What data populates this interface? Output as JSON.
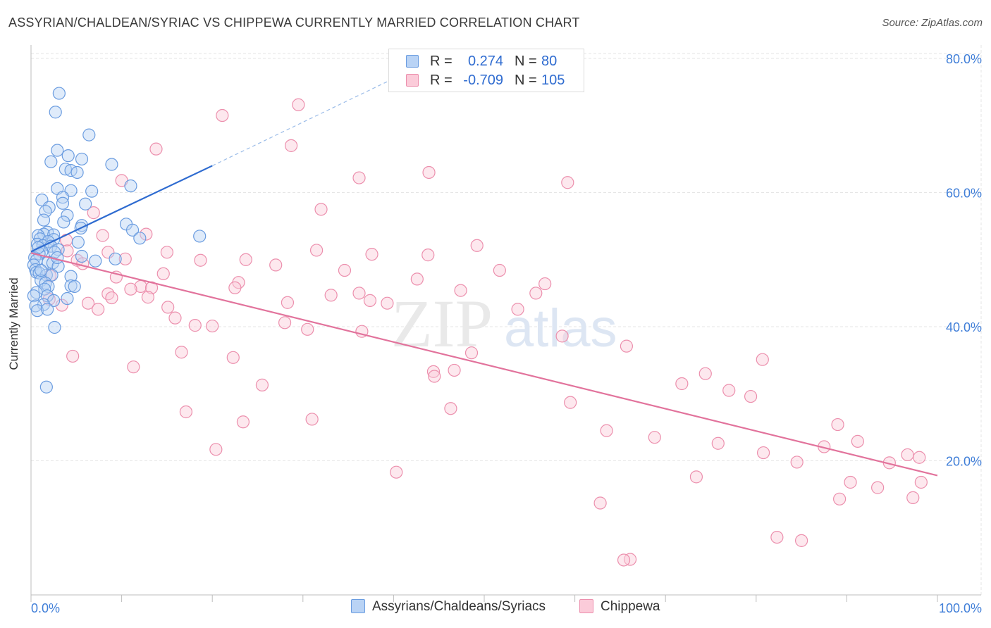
{
  "title": "ASSYRIAN/CHALDEAN/SYRIAC VS CHIPPEWA CURRENTLY MARRIED CORRELATION CHART",
  "source": "Source: ZipAtlas.com",
  "watermark": {
    "zip": "ZIP",
    "atlas": "atlas"
  },
  "legend": {
    "rows": [
      {
        "r_label": "R =",
        "r_value": "0.274",
        "n_label": "N =",
        "n_value": "80",
        "fill": "#b9d3f5",
        "stroke": "#6a9ce0"
      },
      {
        "r_label": "R =",
        "r_value": "-0.709",
        "n_label": "N =",
        "n_value": "105",
        "fill": "#fbcbd9",
        "stroke": "#ec8fad"
      }
    ]
  },
  "bottom_legend": [
    {
      "label": "Assyrians/Chaldeans/Syriacs",
      "fill": "#b9d3f5",
      "stroke": "#6a9ce0"
    },
    {
      "label": "Chippewa",
      "fill": "#fbcbd9",
      "stroke": "#ec8fad"
    }
  ],
  "chart_data": {
    "type": "scatter",
    "title": "ASSYRIAN/CHALDEAN/SYRIAC VS CHIPPEWA CURRENTLY MARRIED CORRELATION CHART",
    "xlabel": "",
    "ylabel": "Currently Married",
    "xlim": [
      0,
      100
    ],
    "ylim": [
      0,
      82
    ],
    "x_tick_labels": [
      {
        "value": 0,
        "label": "0.0%"
      },
      {
        "value": 100,
        "label": "100.0%"
      }
    ],
    "y_tick_labels": [
      {
        "value": 20,
        "label": "20.0%"
      },
      {
        "value": 40,
        "label": "40.0%"
      },
      {
        "value": 60,
        "label": "60.0%"
      },
      {
        "value": 80,
        "label": "80.0%"
      }
    ],
    "grid": true,
    "colors": {
      "blue_fill": "#b9d3f5",
      "blue_stroke": "#6a9ce0",
      "blue_line": "#2e6bd0",
      "pink_fill": "#fbcbd9",
      "pink_stroke": "#ec8fad",
      "pink_line": "#e2739c",
      "tick_label": "#3f7ed8"
    },
    "series": [
      {
        "name": "Assyrians/Chaldeans/Syriacs",
        "trend": {
          "x0": 0,
          "y0": 51.2,
          "x1": 20,
          "y1": 64,
          "dashed_to_x": 40,
          "dashed_to_y": 77
        },
        "points": [
          [
            3.1,
            74.8
          ],
          [
            2.7,
            72.0
          ],
          [
            6.4,
            68.6
          ],
          [
            2.9,
            66.3
          ],
          [
            4.1,
            65.5
          ],
          [
            5.6,
            65.0
          ],
          [
            2.2,
            64.6
          ],
          [
            8.9,
            64.2
          ],
          [
            3.8,
            63.5
          ],
          [
            4.4,
            63.3
          ],
          [
            5.1,
            63.0
          ],
          [
            11.0,
            61.0
          ],
          [
            2.9,
            60.6
          ],
          [
            4.4,
            60.3
          ],
          [
            6.7,
            60.2
          ],
          [
            3.5,
            59.3
          ],
          [
            1.2,
            58.9
          ],
          [
            3.5,
            58.4
          ],
          [
            6.0,
            58.3
          ],
          [
            2.0,
            57.8
          ],
          [
            1.6,
            57.2
          ],
          [
            4.0,
            56.6
          ],
          [
            1.4,
            55.9
          ],
          [
            3.6,
            55.6
          ],
          [
            10.5,
            55.3
          ],
          [
            5.6,
            55.1
          ],
          [
            5.5,
            54.7
          ],
          [
            11.2,
            54.4
          ],
          [
            1.8,
            54.1
          ],
          [
            1.4,
            53.8
          ],
          [
            0.8,
            53.6
          ],
          [
            2.5,
            53.7
          ],
          [
            18.6,
            53.5
          ],
          [
            1.0,
            53.1
          ],
          [
            2.5,
            53.0
          ],
          [
            1.9,
            52.7
          ],
          [
            5.2,
            52.6
          ],
          [
            12.0,
            53.2
          ],
          [
            0.7,
            52.3
          ],
          [
            1.3,
            52.1
          ],
          [
            2.2,
            52.0
          ],
          [
            3.0,
            51.5
          ],
          [
            1.2,
            51.2
          ],
          [
            2.6,
            51.1
          ],
          [
            0.9,
            50.9
          ],
          [
            5.6,
            50.5
          ],
          [
            0.4,
            50.3
          ],
          [
            0.6,
            49.9
          ],
          [
            9.3,
            50.1
          ],
          [
            7.1,
            49.8
          ],
          [
            1.9,
            49.6
          ],
          [
            2.4,
            49.5
          ],
          [
            0.3,
            49.2
          ],
          [
            3.0,
            49.0
          ],
          [
            0.5,
            48.5
          ],
          [
            0.6,
            48.1
          ],
          [
            0.9,
            48.0
          ],
          [
            1.7,
            47.7
          ],
          [
            4.4,
            47.5
          ],
          [
            2.3,
            47.7
          ],
          [
            1.1,
            46.9
          ],
          [
            1.6,
            46.5
          ],
          [
            4.4,
            46.1
          ],
          [
            4.8,
            46.0
          ],
          [
            1.9,
            46.0
          ],
          [
            1.5,
            45.6
          ],
          [
            0.6,
            45.1
          ],
          [
            0.3,
            44.6
          ],
          [
            1.8,
            44.6
          ],
          [
            4.0,
            44.2
          ],
          [
            2.5,
            43.9
          ],
          [
            1.4,
            43.3
          ],
          [
            0.5,
            43.1
          ],
          [
            0.7,
            42.4
          ],
          [
            1.8,
            42.6
          ],
          [
            2.6,
            39.9
          ],
          [
            1.7,
            31.0
          ],
          [
            1.1,
            48.4
          ],
          [
            0.8,
            51.8
          ],
          [
            2.9,
            50.3
          ]
        ]
      },
      {
        "name": "Chippewa",
        "trend": {
          "x0": 0,
          "y0": 51,
          "x1": 100,
          "y1": 17.8
        },
        "points": [
          [
            29.5,
            73.1
          ],
          [
            21.1,
            71.5
          ],
          [
            28.7,
            67.0
          ],
          [
            13.8,
            66.5
          ],
          [
            10.0,
            61.8
          ],
          [
            32.0,
            57.5
          ],
          [
            6.9,
            57.0
          ],
          [
            12.7,
            53.8
          ],
          [
            7.9,
            53.6
          ],
          [
            3.9,
            52.9
          ],
          [
            49.2,
            52.1
          ],
          [
            31.5,
            51.4
          ],
          [
            4.0,
            51.3
          ],
          [
            8.5,
            51.1
          ],
          [
            15.0,
            51.1
          ],
          [
            37.6,
            50.8
          ],
          [
            43.8,
            50.7
          ],
          [
            5.1,
            49.9
          ],
          [
            18.7,
            49.9
          ],
          [
            23.7,
            50.0
          ],
          [
            5.7,
            49.4
          ],
          [
            27.0,
            49.2
          ],
          [
            10.4,
            50.1
          ],
          [
            34.6,
            48.4
          ],
          [
            51.7,
            48.4
          ],
          [
            14.6,
            47.9
          ],
          [
            9.4,
            47.4
          ],
          [
            42.6,
            47.1
          ],
          [
            22.9,
            46.6
          ],
          [
            56.7,
            46.4
          ],
          [
            2.1,
            47.6
          ],
          [
            12.1,
            46.0
          ],
          [
            11.0,
            45.6
          ],
          [
            13.3,
            45.8
          ],
          [
            22.5,
            45.8
          ],
          [
            36.2,
            45.0
          ],
          [
            47.4,
            45.4
          ],
          [
            55.7,
            45.0
          ],
          [
            8.5,
            44.9
          ],
          [
            33.1,
            44.7
          ],
          [
            8.9,
            44.3
          ],
          [
            12.9,
            44.4
          ],
          [
            2.0,
            44.1
          ],
          [
            37.4,
            43.9
          ],
          [
            28.3,
            43.6
          ],
          [
            39.3,
            43.5
          ],
          [
            6.3,
            43.5
          ],
          [
            3.4,
            43.2
          ],
          [
            15.1,
            42.9
          ],
          [
            7.4,
            42.6
          ],
          [
            53.7,
            42.6
          ],
          [
            15.9,
            41.3
          ],
          [
            28.0,
            40.6
          ],
          [
            18.1,
            40.2
          ],
          [
            20.0,
            40.1
          ],
          [
            30.5,
            39.6
          ],
          [
            36.5,
            39.3
          ],
          [
            58.6,
            38.6
          ],
          [
            65.7,
            37.1
          ],
          [
            48.6,
            36.1
          ],
          [
            16.6,
            36.2
          ],
          [
            4.6,
            35.6
          ],
          [
            22.3,
            35.4
          ],
          [
            80.7,
            35.1
          ],
          [
            11.3,
            34.0
          ],
          [
            46.7,
            33.5
          ],
          [
            44.4,
            33.3
          ],
          [
            44.5,
            32.6
          ],
          [
            74.4,
            33.0
          ],
          [
            71.8,
            31.5
          ],
          [
            25.5,
            31.3
          ],
          [
            77.0,
            30.5
          ],
          [
            79.4,
            29.6
          ],
          [
            59.5,
            28.7
          ],
          [
            46.3,
            27.8
          ],
          [
            17.1,
            27.3
          ],
          [
            31.0,
            26.2
          ],
          [
            23.4,
            25.8
          ],
          [
            89.0,
            25.4
          ],
          [
            63.5,
            24.5
          ],
          [
            75.8,
            22.6
          ],
          [
            91.2,
            22.9
          ],
          [
            87.5,
            22.1
          ],
          [
            68.8,
            23.5
          ],
          [
            96.7,
            20.9
          ],
          [
            98.0,
            20.5
          ],
          [
            80.8,
            21.2
          ],
          [
            20.4,
            21.7
          ],
          [
            94.7,
            19.7
          ],
          [
            84.5,
            19.8
          ],
          [
            40.3,
            18.3
          ],
          [
            73.4,
            17.6
          ],
          [
            90.4,
            16.8
          ],
          [
            93.4,
            16.0
          ],
          [
            98.2,
            16.8
          ],
          [
            97.3,
            14.5
          ],
          [
            89.2,
            14.3
          ],
          [
            62.8,
            13.7
          ],
          [
            82.3,
            8.6
          ],
          [
            85.0,
            8.1
          ],
          [
            66.1,
            5.3
          ],
          [
            65.4,
            5.2
          ],
          [
            59.2,
            61.5
          ],
          [
            43.9,
            63.0
          ],
          [
            36.2,
            62.2
          ]
        ]
      }
    ]
  }
}
